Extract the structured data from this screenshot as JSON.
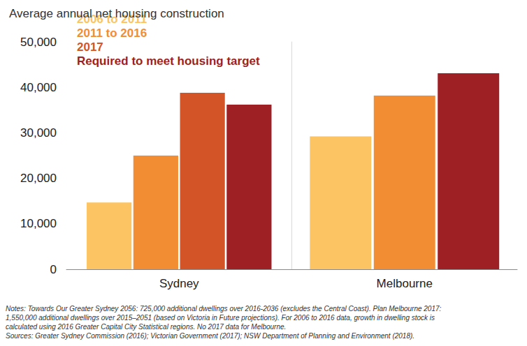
{
  "chart_data": {
    "type": "bar",
    "title": "Average annual net housing construction",
    "categories": [
      "Sydney",
      "Melbourne"
    ],
    "series": [
      {
        "name": "2006 to 2011",
        "color": "#FDC463",
        "values": [
          14700,
          29200
        ]
      },
      {
        "name": "2011 to 2016",
        "color": "#F38D33",
        "values": [
          25000,
          38200
        ]
      },
      {
        "name": "2017",
        "color": "#D35527",
        "values": [
          38800,
          null
        ]
      },
      {
        "name": "Required to meet housing target",
        "color": "#9E1F24",
        "values": [
          36200,
          43100
        ]
      }
    ],
    "ylim": [
      0,
      50000
    ],
    "yticks": [
      0,
      {
        "value": 10000,
        "label": "10,000"
      },
      {
        "value": 20000,
        "label": "20,000"
      },
      {
        "value": 30000,
        "label": "30,000"
      },
      {
        "value": 40000,
        "label": "40,000"
      },
      {
        "value": 50000,
        "label": "50,000"
      }
    ],
    "grid": false,
    "legend": "upper left",
    "notes": [
      "Notes: Towards Our Greater Sydney 2056: 725,000 additional dwellings over 2016-2036 (excludes the Central Coast). Plan Melbourne 2017:",
      "1,550,000 additional dwellings over 2015–2051 (based on Victoria in Future projections). For 2006 to 2016 data, growth in dwelling stock is",
      "calculated using 2016 Greater Capital City Statistical regions. No 2017 data for Melbourne.",
      "Sources: Greater Sydney Commission (2016); Victorian Government (2017); NSW Department of Planning and Environment (2018)."
    ]
  }
}
